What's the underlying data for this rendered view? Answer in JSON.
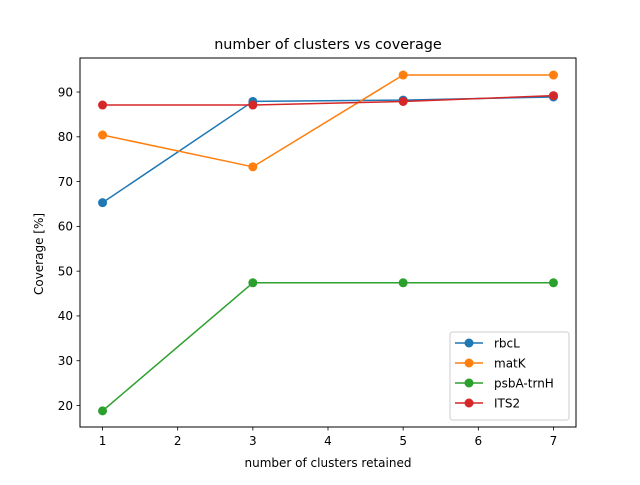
{
  "chart_data": {
    "type": "line",
    "title": "number of clusters vs coverage",
    "xlabel": "number of clusters retained",
    "ylabel": "Coverage [%]",
    "x": [
      1,
      3,
      5,
      7
    ],
    "xlim": [
      0.7,
      7.3
    ],
    "ylim": [
      15.2,
      97.6
    ],
    "xticks": [
      1,
      2,
      3,
      4,
      5,
      6,
      7
    ],
    "yticks": [
      20,
      30,
      40,
      50,
      60,
      70,
      80,
      90
    ],
    "grid": false,
    "legend_position": "lower-right",
    "series": [
      {
        "name": "rbcL",
        "color": "#1f77b4",
        "values": [
          65.3,
          87.9,
          88.2,
          88.9
        ]
      },
      {
        "name": "matK",
        "color": "#ff7f0e",
        "values": [
          80.4,
          73.3,
          93.8,
          93.8
        ]
      },
      {
        "name": "psbA-trnH",
        "color": "#2ca02c",
        "values": [
          18.8,
          47.4,
          47.4,
          47.4
        ]
      },
      {
        "name": "ITS2",
        "color": "#d62728",
        "values": [
          87.1,
          87.1,
          87.9,
          89.2
        ]
      }
    ]
  }
}
